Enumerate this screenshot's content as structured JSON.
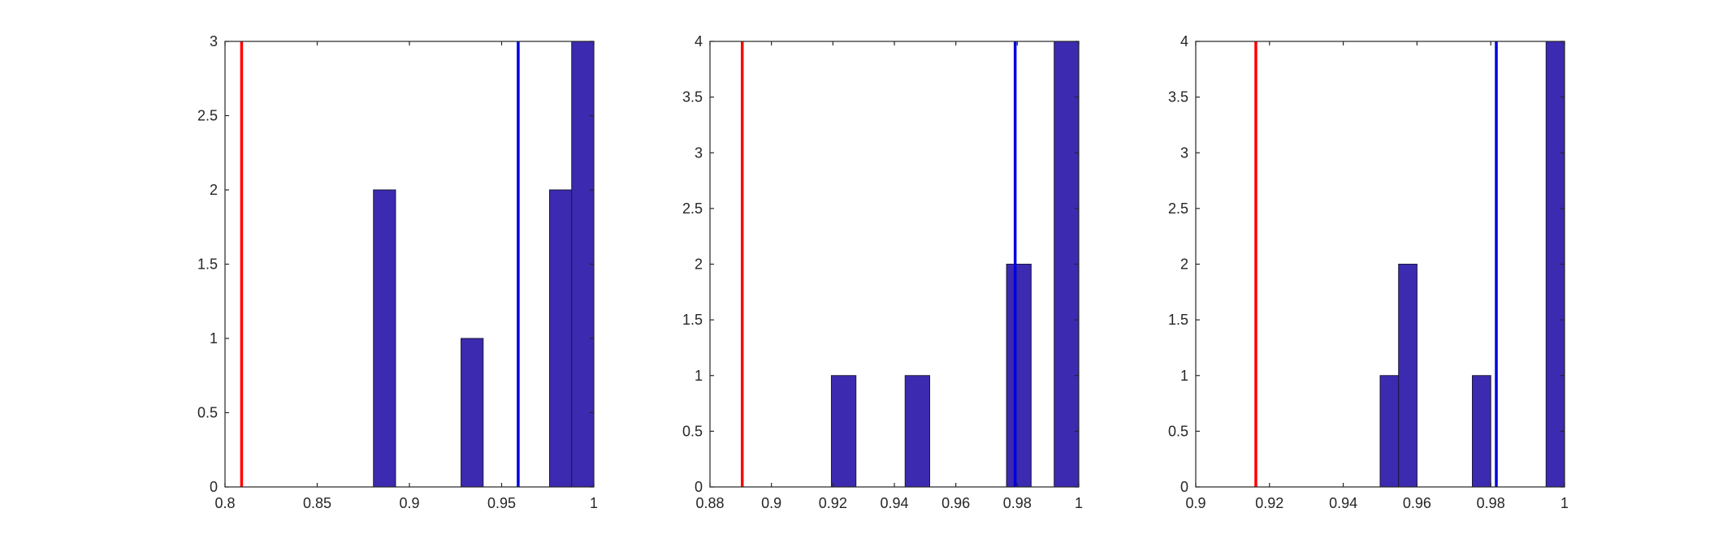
{
  "chart_data": [
    {
      "type": "bar",
      "xlim": [
        0.8,
        1.0
      ],
      "ylim": [
        0,
        3
      ],
      "xticks": [
        "0.8",
        "0.85",
        "0.9",
        "0.95",
        "1"
      ],
      "xtick_values": [
        0.8,
        0.85,
        0.9,
        0.95,
        1.0
      ],
      "yticks": [
        "0",
        "0.5",
        "1",
        "1.5",
        "2",
        "2.5",
        "3"
      ],
      "ytick_values": [
        0,
        0.5,
        1,
        1.5,
        2,
        2.5,
        3
      ],
      "bin_width": 0.012,
      "bins": [
        {
          "x": 0.8865,
          "count": 2
        },
        {
          "x": 0.934,
          "count": 1
        },
        {
          "x": 0.982,
          "count": 2
        },
        {
          "x": 0.994,
          "count": 3
        }
      ],
      "vlines": [
        {
          "x": 0.809,
          "color": "#ff0000"
        },
        {
          "x": 0.959,
          "color": "#0000dd"
        }
      ],
      "bar_color": "#3c2ab0"
    },
    {
      "type": "bar",
      "xlim": [
        0.88,
        1.0
      ],
      "ylim": [
        0,
        4
      ],
      "xticks": [
        "0.88",
        "0.9",
        "0.92",
        "0.94",
        "0.96",
        "0.98",
        "1"
      ],
      "xtick_values": [
        0.88,
        0.9,
        0.92,
        0.94,
        0.96,
        0.98,
        1.0
      ],
      "yticks": [
        "0",
        "0.5",
        "1",
        "1.5",
        "2",
        "2.5",
        "3",
        "3.5",
        "4"
      ],
      "ytick_values": [
        0,
        0.5,
        1,
        1.5,
        2,
        2.5,
        3,
        3.5,
        4
      ],
      "bin_width": 0.008,
      "bins": [
        {
          "x": 0.9235,
          "count": 1
        },
        {
          "x": 0.9475,
          "count": 1
        },
        {
          "x": 0.9805,
          "count": 2
        },
        {
          "x": 0.996,
          "count": 4
        }
      ],
      "vlines": [
        {
          "x": 0.8905,
          "color": "#ff0000"
        },
        {
          "x": 0.9793,
          "color": "#0000dd"
        }
      ],
      "bar_color": "#3c2ab0"
    },
    {
      "type": "bar",
      "xlim": [
        0.9,
        1.0
      ],
      "ylim": [
        0,
        4
      ],
      "xticks": [
        "0.9",
        "0.92",
        "0.94",
        "0.96",
        "0.98",
        "1"
      ],
      "xtick_values": [
        0.9,
        0.92,
        0.94,
        0.96,
        0.98,
        1.0
      ],
      "yticks": [
        "0",
        "0.5",
        "1",
        "1.5",
        "2",
        "2.5",
        "3",
        "3.5",
        "4"
      ],
      "ytick_values": [
        0,
        0.5,
        1,
        1.5,
        2,
        2.5,
        3,
        3.5,
        4
      ],
      "bin_width": 0.005,
      "bins": [
        {
          "x": 0.9525,
          "count": 1
        },
        {
          "x": 0.9575,
          "count": 2
        },
        {
          "x": 0.9775,
          "count": 1
        },
        {
          "x": 0.9975,
          "count": 4
        }
      ],
      "vlines": [
        {
          "x": 0.9163,
          "color": "#ff0000"
        },
        {
          "x": 0.9815,
          "color": "#0000dd"
        }
      ],
      "bar_color": "#3c2ab0"
    }
  ]
}
